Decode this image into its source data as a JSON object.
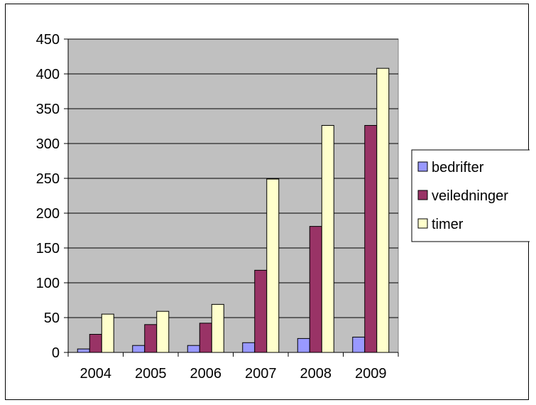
{
  "chart_data": {
    "type": "bar",
    "categories": [
      "2004",
      "2005",
      "2006",
      "2007",
      "2008",
      "2009"
    ],
    "series": [
      {
        "name": "bedrifter",
        "values": [
          5,
          10,
          10,
          14,
          20,
          22
        ],
        "color": "#9999FF"
      },
      {
        "name": "veiledninger",
        "values": [
          26,
          40,
          42,
          118,
          181,
          326
        ],
        "color": "#993366"
      },
      {
        "name": "timer",
        "values": [
          55,
          59,
          69,
          249,
          326,
          408
        ],
        "color": "#FFFFCC"
      }
    ],
    "yticks": [
      "0",
      "50",
      "100",
      "150",
      "200",
      "250",
      "300",
      "350",
      "400",
      "450"
    ],
    "ylim": [
      0,
      450
    ],
    "grid": true,
    "plot_background": "#C0C0C0",
    "legend_position": "right"
  }
}
